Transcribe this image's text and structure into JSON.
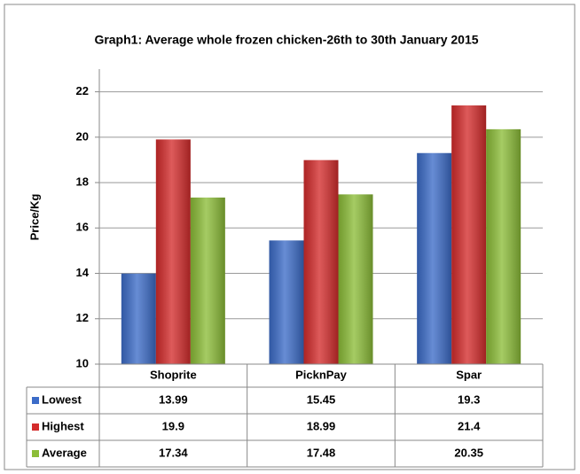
{
  "chart_data": {
    "type": "bar",
    "title": "Graph1: Average whole frozen chicken-26th to 30th January 2015",
    "y_label": "Price/Kg",
    "categories": [
      "Shoprite",
      "PicknPay",
      "Spar"
    ],
    "series": [
      {
        "name": "Lowest",
        "color": "#3c6cc8",
        "values": [
          13.99,
          15.45,
          19.3
        ]
      },
      {
        "name": "Highest",
        "color": "#d42c2c",
        "values": [
          19.9,
          18.99,
          21.4
        ]
      },
      {
        "name": "Average",
        "color": "#8cbd38",
        "values": [
          17.34,
          17.48,
          20.35
        ]
      }
    ],
    "ylim": [
      10,
      23
    ],
    "yticks": [
      10,
      12,
      14,
      16,
      18,
      20,
      22
    ],
    "grid": true,
    "data_table": true
  }
}
